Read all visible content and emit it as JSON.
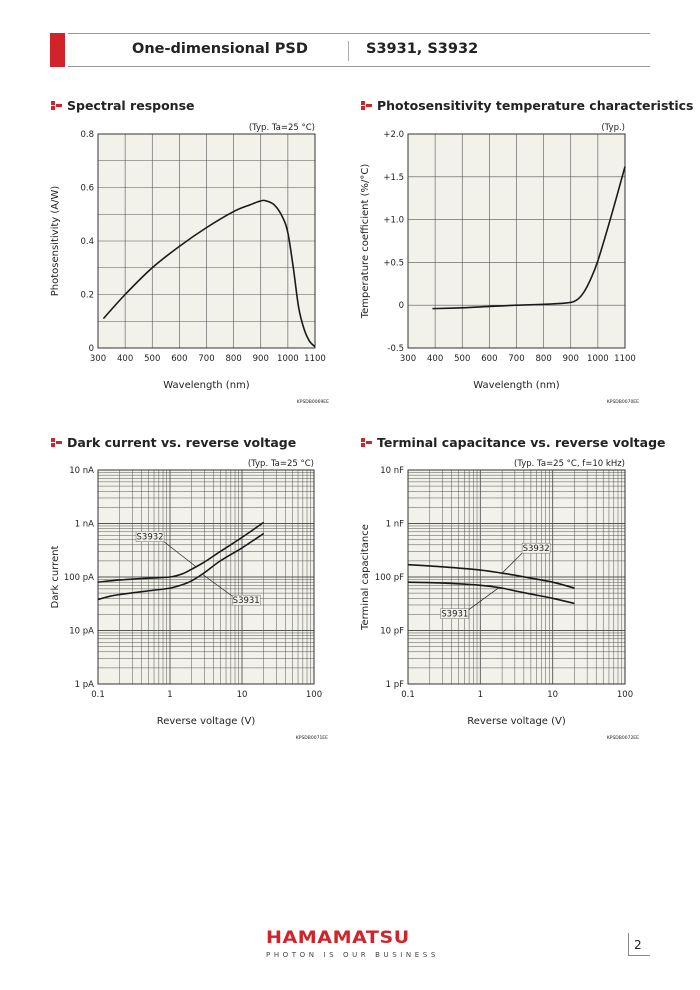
{
  "header": {
    "title": "One-dimensional PSD",
    "models": "S3931, S3932"
  },
  "footer": {
    "logo": "HAMAMATSU",
    "tagline": "PHOTON IS OUR BUSINESS",
    "page": "2"
  },
  "colors": {
    "brand": "#d2232a",
    "plot_bg": "#f2f1ea",
    "grid": "#555555",
    "curve": "#1a1a1a"
  },
  "chart_data": [
    {
      "type": "line",
      "title": "Spectral response",
      "note": "(Typ. Ta=25 °C)",
      "code": "KPSDB0069EE",
      "xlabel": "Wavelength (nm)",
      "ylabel": "Photosensitivity (A/W)",
      "xscale": "linear",
      "yscale": "linear",
      "xlim": [
        300,
        1100
      ],
      "ylim": [
        0,
        0.8
      ],
      "xticks": [
        300,
        400,
        500,
        600,
        700,
        800,
        900,
        1000,
        1100
      ],
      "xtick_labels": [
        "300",
        "400",
        "500",
        "600",
        "700",
        "800",
        "900",
        "1000",
        "1100"
      ],
      "yticks": [
        0,
        0.2,
        0.4,
        0.6,
        0.8
      ],
      "ytick_labels": [
        "0",
        "0.2",
        "0.4",
        "0.6",
        "0.8"
      ],
      "ygrid_step": 0.1,
      "grid": true,
      "series": [
        {
          "name": "S3931, S3932",
          "x": [
            320,
            400,
            500,
            600,
            700,
            800,
            860,
            900,
            920,
            950,
            980,
            1000,
            1020,
            1040,
            1060,
            1080,
            1100
          ],
          "y": [
            0.11,
            0.2,
            0.3,
            0.38,
            0.45,
            0.51,
            0.535,
            0.55,
            0.55,
            0.535,
            0.49,
            0.43,
            0.3,
            0.15,
            0.07,
            0.025,
            0.005
          ]
        }
      ]
    },
    {
      "type": "line",
      "title": "Photosensitivity temperature characteristics",
      "note": "(Typ.)",
      "code": "KPSDB0070EE",
      "xlabel": "Wavelength (nm)",
      "ylabel": "Temperature coefficient (%/°C)",
      "xscale": "linear",
      "yscale": "linear",
      "xlim": [
        300,
        1100
      ],
      "ylim": [
        -0.5,
        2.0
      ],
      "xticks": [
        300,
        400,
        500,
        600,
        700,
        800,
        900,
        1000,
        1100
      ],
      "xtick_labels": [
        "300",
        "400",
        "500",
        "600",
        "700",
        "800",
        "900",
        "1000",
        "1100"
      ],
      "yticks": [
        -0.5,
        0,
        0.5,
        1.0,
        1.5,
        2.0
      ],
      "ytick_labels": [
        "-0.5",
        "0",
        "+0.5",
        "+1.0",
        "+1.5",
        "+2.0"
      ],
      "ygrid_step": 0.5,
      "grid": true,
      "series": [
        {
          "name": "S3931, S3932",
          "x": [
            390,
            500,
            600,
            700,
            800,
            880,
            910,
            930,
            950,
            970,
            1000,
            1050,
            1100
          ],
          "y": [
            -0.04,
            -0.03,
            -0.015,
            0,
            0.01,
            0.025,
            0.04,
            0.08,
            0.16,
            0.28,
            0.52,
            1.05,
            1.62
          ]
        }
      ]
    },
    {
      "type": "line",
      "title": "Dark current vs. reverse voltage",
      "note": "(Typ. Ta=25 °C)",
      "code": "KPSDB0071EE",
      "xlabel": "Reverse voltage (V)",
      "ylabel": "Dark current",
      "xscale": "log",
      "yscale": "log",
      "xlim": [
        0.1,
        100
      ],
      "ylim": [
        1,
        10000
      ],
      "y_unit": "pA",
      "xticks": [
        0.1,
        1,
        10,
        100
      ],
      "xtick_labels": [
        "0.1",
        "1",
        "10",
        "100"
      ],
      "yticks": [
        1,
        10,
        100,
        1000,
        10000
      ],
      "ytick_labels": [
        "1 pA",
        "10 pA",
        "100 pA",
        "1 nA",
        "10 nA"
      ],
      "grid": true,
      "series": [
        {
          "name": "S3932",
          "x": [
            0.1,
            0.2,
            0.5,
            1,
            1.5,
            2,
            3,
            5,
            10,
            20
          ],
          "y": [
            80,
            88,
            95,
            100,
            115,
            140,
            190,
            300,
            550,
            1050
          ]
        },
        {
          "name": "S3931",
          "x": [
            0.1,
            0.15,
            0.2,
            0.5,
            1,
            1.5,
            2,
            3,
            5,
            10,
            20
          ],
          "y": [
            38,
            44,
            47,
            55,
            62,
            72,
            85,
            120,
            200,
            350,
            650
          ]
        }
      ],
      "annotations": [
        {
          "text": "S3932",
          "series": "S3932",
          "at_x": 2.3
        },
        {
          "text": "S3931",
          "series": "S3931",
          "at_x": 2.8
        }
      ]
    },
    {
      "type": "line",
      "title": "Terminal capacitance vs. reverse voltage",
      "note": "(Typ. Ta=25 °C, f=10 kHz)",
      "code": "KPSDB0072EE",
      "xlabel": "Reverse voltage (V)",
      "ylabel": "Terminal capacitance",
      "xscale": "log",
      "yscale": "log",
      "xlim": [
        0.1,
        100
      ],
      "ylim": [
        1,
        10000
      ],
      "y_unit": "pF",
      "xticks": [
        0.1,
        1,
        10,
        100
      ],
      "xtick_labels": [
        "0.1",
        "1",
        "10",
        "100"
      ],
      "yticks": [
        1,
        10,
        100,
        1000,
        10000
      ],
      "ytick_labels": [
        "1 pF",
        "10 pF",
        "100 pF",
        "1 nF",
        "10 nF"
      ],
      "grid": true,
      "series": [
        {
          "name": "S3932",
          "x": [
            0.1,
            0.3,
            1,
            2,
            3,
            5,
            10,
            20
          ],
          "y": [
            170,
            155,
            135,
            118,
            108,
            95,
            80,
            62
          ]
        },
        {
          "name": "S3931",
          "x": [
            0.1,
            0.3,
            1,
            2,
            3,
            5,
            10,
            20
          ],
          "y": [
            80,
            77,
            70,
            62,
            55,
            48,
            40,
            32
          ]
        }
      ],
      "annotations": [
        {
          "text": "S3932",
          "series": "S3932",
          "at_x": 2.0
        },
        {
          "text": "S3931",
          "series": "S3931",
          "at_x": 1.8
        }
      ]
    }
  ]
}
